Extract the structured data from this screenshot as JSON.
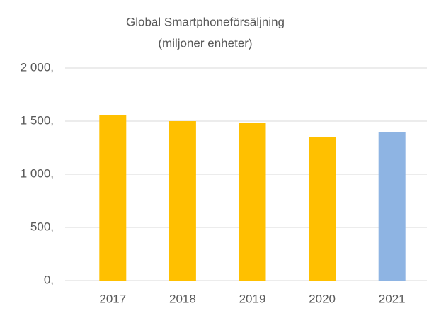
{
  "chart_data": {
    "type": "bar",
    "title": "Global Smartphoneförsäljning",
    "subtitle": "(miljoner enheter)",
    "categories": [
      "2017",
      "2018",
      "2019",
      "2020",
      "2021"
    ],
    "values": [
      1560,
      1500,
      1480,
      1350,
      1400
    ],
    "colors": [
      "#ffc000",
      "#ffc000",
      "#ffc000",
      "#ffc000",
      "#8eb4e3"
    ],
    "ylim": [
      0,
      2000
    ],
    "yticks": [
      {
        "value": 0,
        "label": "0,"
      },
      {
        "value": 500,
        "label": "500,"
      },
      {
        "value": 1000,
        "label": "1 000,"
      },
      {
        "value": 1500,
        "label": "1 500,"
      },
      {
        "value": 2000,
        "label": "2 000,"
      }
    ],
    "grid": true
  }
}
